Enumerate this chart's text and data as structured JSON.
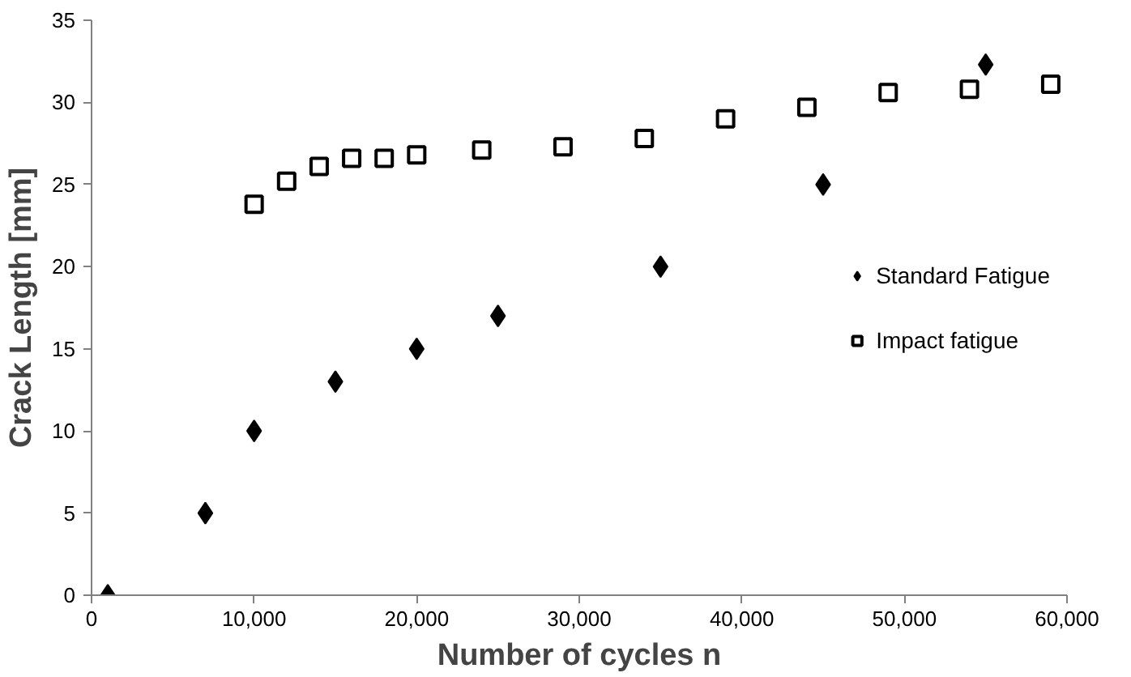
{
  "chart_data": {
    "type": "scatter",
    "xlabel": "Number of cycles n",
    "ylabel": "Crack Length [mm]",
    "xlim": [
      0,
      60000
    ],
    "ylim": [
      0,
      35
    ],
    "xticks": [
      0,
      {
        "value": 10000,
        "label": "10,000"
      },
      {
        "value": 20000,
        "label": "20,000"
      },
      {
        "value": 30000,
        "label": "30,000"
      },
      {
        "value": 40000,
        "label": "40,000"
      },
      {
        "value": 50000,
        "label": "50,000"
      },
      {
        "value": 60000,
        "label": "60,000"
      }
    ],
    "yticks": [
      0,
      5,
      10,
      15,
      20,
      25,
      30,
      35
    ],
    "grid": false,
    "legend": "right",
    "series": [
      {
        "name": "Standard Fatigue",
        "color": "#000000",
        "marker": "diamond",
        "x": [
          1000,
          7000,
          10000,
          15000,
          20000,
          25000,
          35000,
          45000,
          55000
        ],
        "values": [
          0,
          5,
          10,
          13,
          15,
          17,
          20,
          25,
          32.3
        ]
      },
      {
        "name": "Impact fatigue",
        "color": "#000000",
        "marker": "square",
        "x": [
          10000,
          12000,
          14000,
          16000,
          18000,
          20000,
          24000,
          29000,
          34000,
          39000,
          44000,
          49000,
          54000,
          59000
        ],
        "values": [
          23.8,
          25.2,
          26.1,
          26.6,
          26.6,
          26.8,
          27.1,
          27.3,
          27.8,
          29,
          29.7,
          30.6,
          30.8,
          31.1
        ]
      }
    ]
  }
}
